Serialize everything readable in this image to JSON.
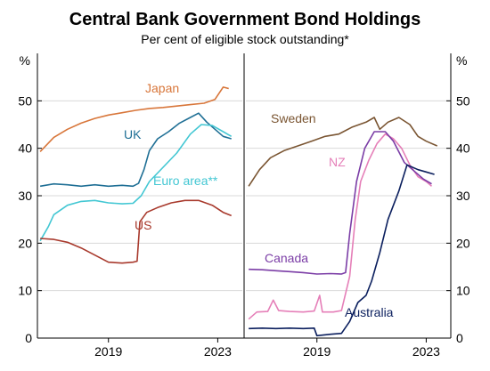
{
  "title": "Central Bank Government Bond Holdings",
  "subtitle": "Per cent of eligible stock outstanding*",
  "colors": {
    "japan": "#d8763a",
    "uk": "#1f6f95",
    "euro": "#43c7d3",
    "us": "#a8392c",
    "sweden": "#7a5532",
    "nz": "#e57fb8",
    "canada": "#7b3da6",
    "australia": "#0b1f5e",
    "axis": "#000000",
    "grid": "#d9d9d9",
    "divider": "#000000"
  },
  "chart_data": [
    {
      "type": "line",
      "panel": "left",
      "ylim": [
        0,
        60
      ],
      "yticks": [
        0,
        10,
        20,
        30,
        40,
        50
      ],
      "y_unit_left": "%",
      "xlim": [
        2016.4,
        2023.9
      ],
      "xticks": [
        2019,
        2023
      ],
      "xtick_labels": [
        "2019",
        "2023"
      ],
      "series": [
        {
          "name": "Japan",
          "color_key": "japan",
          "points": [
            [
              2016.5,
              39.3
            ],
            [
              2017.0,
              42.3
            ],
            [
              2017.5,
              44.0
            ],
            [
              2018.0,
              45.3
            ],
            [
              2018.5,
              46.3
            ],
            [
              2019.0,
              47.0
            ],
            [
              2019.5,
              47.5
            ],
            [
              2020.0,
              48.0
            ],
            [
              2020.5,
              48.4
            ],
            [
              2021.0,
              48.6
            ],
            [
              2021.5,
              48.9
            ],
            [
              2022.0,
              49.2
            ],
            [
              2022.5,
              49.5
            ],
            [
              2022.9,
              50.3
            ],
            [
              2023.2,
              52.9
            ],
            [
              2023.4,
              52.6
            ]
          ]
        },
        {
          "name": "UK",
          "color_key": "uk",
          "points": [
            [
              2016.5,
              32.0
            ],
            [
              2017.0,
              32.5
            ],
            [
              2017.5,
              32.3
            ],
            [
              2018.0,
              32.0
            ],
            [
              2018.5,
              32.3
            ],
            [
              2019.0,
              32.0
            ],
            [
              2019.5,
              32.2
            ],
            [
              2019.9,
              32.0
            ],
            [
              2020.1,
              32.6
            ],
            [
              2020.3,
              35.5
            ],
            [
              2020.5,
              39.5
            ],
            [
              2020.8,
              42.0
            ],
            [
              2021.2,
              43.5
            ],
            [
              2021.6,
              45.3
            ],
            [
              2022.0,
              46.5
            ],
            [
              2022.3,
              47.4
            ],
            [
              2022.6,
              45.5
            ],
            [
              2022.9,
              44.0
            ],
            [
              2023.2,
              42.5
            ],
            [
              2023.5,
              42.0
            ]
          ]
        },
        {
          "name": "Euro area**",
          "color_key": "euro",
          "points": [
            [
              2016.5,
              20.5
            ],
            [
              2016.8,
              23.5
            ],
            [
              2017.0,
              26.0
            ],
            [
              2017.5,
              28.0
            ],
            [
              2018.0,
              28.8
            ],
            [
              2018.5,
              29.0
            ],
            [
              2019.0,
              28.5
            ],
            [
              2019.5,
              28.3
            ],
            [
              2019.9,
              28.4
            ],
            [
              2020.2,
              30.0
            ],
            [
              2020.5,
              33.0
            ],
            [
              2021.0,
              36.0
            ],
            [
              2021.5,
              39.0
            ],
            [
              2022.0,
              43.0
            ],
            [
              2022.4,
              45.0
            ],
            [
              2022.8,
              44.8
            ],
            [
              2023.2,
              43.5
            ],
            [
              2023.5,
              42.5
            ]
          ]
        },
        {
          "name": "US",
          "color_key": "us",
          "points": [
            [
              2016.5,
              21.0
            ],
            [
              2017.0,
              20.8
            ],
            [
              2017.5,
              20.2
            ],
            [
              2018.0,
              19.0
            ],
            [
              2018.5,
              17.5
            ],
            [
              2019.0,
              16.0
            ],
            [
              2019.5,
              15.8
            ],
            [
              2019.9,
              16.0
            ],
            [
              2020.05,
              16.2
            ],
            [
              2020.15,
              24.5
            ],
            [
              2020.4,
              26.5
            ],
            [
              2020.8,
              27.5
            ],
            [
              2021.3,
              28.5
            ],
            [
              2021.8,
              29.0
            ],
            [
              2022.3,
              29.0
            ],
            [
              2022.8,
              28.0
            ],
            [
              2023.2,
              26.5
            ],
            [
              2023.5,
              25.8
            ]
          ]
        }
      ]
    },
    {
      "type": "line",
      "panel": "right",
      "ylim": [
        0,
        60
      ],
      "yticks": [
        0,
        10,
        20,
        30,
        40,
        50
      ],
      "y_unit_right": "%",
      "xlim": [
        2016.4,
        2023.9
      ],
      "xticks": [
        2019,
        2023
      ],
      "xtick_labels": [
        "2019",
        "2023"
      ],
      "series": [
        {
          "name": "Sweden",
          "color_key": "sweden",
          "points": [
            [
              2016.5,
              32.0
            ],
            [
              2016.9,
              35.5
            ],
            [
              2017.3,
              38.0
            ],
            [
              2017.8,
              39.5
            ],
            [
              2018.3,
              40.5
            ],
            [
              2018.8,
              41.5
            ],
            [
              2019.3,
              42.5
            ],
            [
              2019.8,
              43.0
            ],
            [
              2020.3,
              44.5
            ],
            [
              2020.8,
              45.5
            ],
            [
              2021.1,
              46.5
            ],
            [
              2021.3,
              44.0
            ],
            [
              2021.6,
              45.5
            ],
            [
              2022.0,
              46.5
            ],
            [
              2022.4,
              45.0
            ],
            [
              2022.7,
              42.5
            ],
            [
              2023.0,
              41.5
            ],
            [
              2023.4,
              40.5
            ]
          ]
        },
        {
          "name": "NZ",
          "color_key": "nz",
          "points": [
            [
              2016.5,
              4.0
            ],
            [
              2016.8,
              5.5
            ],
            [
              2017.2,
              5.6
            ],
            [
              2017.4,
              8.0
            ],
            [
              2017.6,
              5.8
            ],
            [
              2018.0,
              5.6
            ],
            [
              2018.5,
              5.5
            ],
            [
              2018.9,
              5.7
            ],
            [
              2019.1,
              9.0
            ],
            [
              2019.2,
              5.5
            ],
            [
              2019.6,
              5.5
            ],
            [
              2019.9,
              5.8
            ],
            [
              2020.2,
              13.0
            ],
            [
              2020.4,
              25.0
            ],
            [
              2020.6,
              33.0
            ],
            [
              2020.9,
              37.5
            ],
            [
              2021.2,
              41.0
            ],
            [
              2021.5,
              43.0
            ],
            [
              2021.8,
              42.0
            ],
            [
              2022.1,
              40.0
            ],
            [
              2022.4,
              36.5
            ],
            [
              2022.7,
              34.0
            ],
            [
              2023.0,
              33.0
            ],
            [
              2023.2,
              32.0
            ]
          ]
        },
        {
          "name": "Canada",
          "color_key": "canada",
          "points": [
            [
              2016.5,
              14.5
            ],
            [
              2017.0,
              14.4
            ],
            [
              2017.5,
              14.2
            ],
            [
              2018.0,
              14.0
            ],
            [
              2018.5,
              13.8
            ],
            [
              2019.0,
              13.5
            ],
            [
              2019.5,
              13.6
            ],
            [
              2019.9,
              13.5
            ],
            [
              2020.05,
              13.8
            ],
            [
              2020.2,
              22.0
            ],
            [
              2020.45,
              33.0
            ],
            [
              2020.75,
              40.0
            ],
            [
              2021.1,
              43.5
            ],
            [
              2021.5,
              43.5
            ],
            [
              2021.8,
              41.5
            ],
            [
              2022.2,
              37.0
            ],
            [
              2022.6,
              35.0
            ],
            [
              2022.9,
              33.5
            ],
            [
              2023.2,
              32.5
            ]
          ]
        },
        {
          "name": "Australia",
          "color_key": "australia",
          "points": [
            [
              2016.5,
              2.0
            ],
            [
              2017.0,
              2.1
            ],
            [
              2017.5,
              2.0
            ],
            [
              2018.0,
              2.1
            ],
            [
              2018.5,
              2.0
            ],
            [
              2018.9,
              2.1
            ],
            [
              2019.0,
              0.5
            ],
            [
              2019.5,
              0.8
            ],
            [
              2019.9,
              1.0
            ],
            [
              2020.2,
              3.5
            ],
            [
              2020.5,
              7.5
            ],
            [
              2020.8,
              9.0
            ],
            [
              2021.0,
              12.0
            ],
            [
              2021.3,
              18.0
            ],
            [
              2021.6,
              25.0
            ],
            [
              2022.0,
              31.0
            ],
            [
              2022.3,
              36.5
            ],
            [
              2022.7,
              35.5
            ],
            [
              2023.0,
              35.0
            ],
            [
              2023.3,
              34.5
            ]
          ]
        }
      ]
    }
  ],
  "labels": {
    "japan": "Japan",
    "uk": "UK",
    "euro": "Euro area**",
    "us": "US",
    "sweden": "Sweden",
    "nz": "NZ",
    "canada": "Canada",
    "australia": "Australia"
  }
}
